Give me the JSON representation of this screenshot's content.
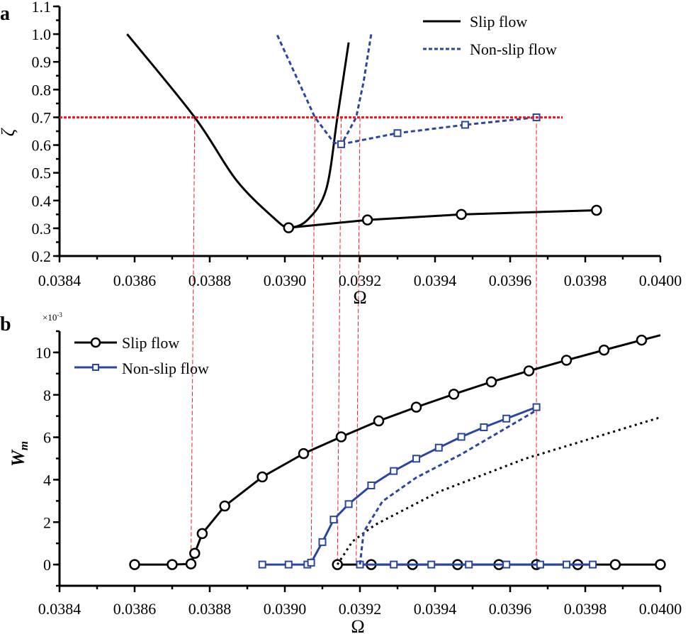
{
  "colors": {
    "slip": "#000000",
    "nonslip": "#2a46a0",
    "guide": "#ee1c24"
  },
  "chart_data": [
    {
      "panel_label": "a",
      "type": "line",
      "xlabel": "Ω",
      "ylabel": "ζ",
      "xlim": [
        0.0384,
        0.04
      ],
      "ylim": [
        0.2,
        1.1
      ],
      "xticks": [
        "0.0384",
        "0.0386",
        "0.0388",
        "0.0390",
        "0.0392",
        "0.0394",
        "0.0396",
        "0.0398",
        "0.0400"
      ],
      "yticks": [
        "0.2",
        "0.3",
        "0.4",
        "0.5",
        "0.6",
        "0.7",
        "0.8",
        "0.9",
        "1.0",
        "1.1"
      ],
      "legend_placement": "top-right",
      "grid": false,
      "series": [
        {
          "name": "Slip flow",
          "style": "solid",
          "color": "#000000",
          "x": [
            0.03858,
            0.03876,
            0.03887,
            0.03897,
            0.03901,
            0.03906,
            0.03911,
            0.03914,
            0.03917
          ],
          "y": [
            1.0,
            0.7,
            0.475,
            0.338,
            0.304,
            0.33,
            0.44,
            0.7,
            0.97
          ]
        },
        {
          "style": "solid-markers",
          "marker": "circle",
          "color": "#000000",
          "x": [
            0.03901,
            0.03922,
            0.03947,
            0.03983
          ],
          "y": [
            0.302,
            0.33,
            0.35,
            0.365
          ]
        },
        {
          "name": "Non-slip flow",
          "style": "dashed",
          "color": "#2a46a0",
          "x": [
            0.03898,
            0.03908,
            0.03913,
            0.03915,
            0.03919,
            0.03921,
            0.03923
          ],
          "y": [
            0.996,
            0.7,
            0.61,
            0.6,
            0.7,
            0.83,
            1.0
          ]
        },
        {
          "style": "dashed-markers",
          "marker": "square",
          "color": "#2a46a0",
          "x": [
            0.03915,
            0.0393,
            0.03948,
            0.03967
          ],
          "y": [
            0.603,
            0.643,
            0.673,
            0.7
          ]
        }
      ],
      "reference_line": {
        "y": 0.7,
        "x_range": [
          0.0384,
          0.03974
        ],
        "color": "#ee1c24"
      },
      "vertical_guides": [
        0.03876,
        0.03908,
        0.03915,
        0.0392,
        0.03967
      ]
    },
    {
      "panel_label": "b",
      "type": "line",
      "xlabel": "Ω",
      "ylabel": "W",
      "ylabel_subscript": "m",
      "y_multiplier": "×10",
      "y_multiplier_exp": "-3",
      "xlim": [
        0.0384,
        0.04
      ],
      "ylim": [
        -1,
        11
      ],
      "xticks": [
        "0.0384",
        "0.0386",
        "0.0388",
        "0.0390",
        "0.0392",
        "0.0394",
        "0.0396",
        "0.0398",
        "0.0400"
      ],
      "yticks": [
        "0",
        "2",
        "4",
        "6",
        "8",
        "10"
      ],
      "legend_placement": "top-left",
      "grid": false,
      "series": [
        {
          "name": "Slip flow",
          "style": "solid-markers",
          "marker": "circle",
          "color": "#000000",
          "x": [
            0.0386,
            0.0387,
            0.03875,
            0.03876,
            0.03878,
            0.03884,
            0.03894,
            0.03905,
            0.03915,
            0.03925,
            0.03935,
            0.03945,
            0.03955,
            0.03965,
            0.03975,
            0.03985,
            0.03995
          ],
          "y": [
            0,
            0,
            0.03,
            0.53,
            1.46,
            2.76,
            4.13,
            5.23,
            6.02,
            6.77,
            7.42,
            8.03,
            8.61,
            9.13,
            9.63,
            10.11,
            10.58
          ],
          "line_end": [
            0.04,
            10.81
          ]
        },
        {
          "style": "solid-markers",
          "marker": "circle",
          "color": "#000000",
          "x": [
            0.03914,
            0.03923,
            0.03934,
            0.03946,
            0.03957,
            0.03967,
            0.03978,
            0.03988,
            0.04
          ],
          "y": [
            0,
            0,
            0,
            0,
            0,
            0,
            0,
            0,
            0
          ]
        },
        {
          "style": "dotted",
          "color": "#000000",
          "x": [
            0.03914,
            0.03918,
            0.03924,
            0.03941,
            0.03964,
            0.04
          ],
          "y": [
            0,
            1.09,
            1.87,
            3.43,
            4.99,
            6.94
          ]
        },
        {
          "name": "Non-slip flow",
          "style": "solid-markers",
          "marker": "square",
          "color": "#2a46a0",
          "x": [
            0.03894,
            0.03901,
            0.03906,
            0.03907,
            0.0391,
            0.03913,
            0.03917,
            0.03923,
            0.03929,
            0.03935,
            0.03941,
            0.03947,
            0.03953,
            0.03959,
            0.03967
          ],
          "y": [
            0,
            0,
            0,
            0.09,
            1.06,
            2.12,
            2.85,
            3.73,
            4.41,
            4.99,
            5.51,
            6.02,
            6.47,
            6.88,
            7.42
          ]
        },
        {
          "style": "solid-markers",
          "marker": "square",
          "color": "#2a46a0",
          "x": [
            0.0392,
            0.03929,
            0.03939,
            0.03949,
            0.03959,
            0.03968,
            0.03975,
            0.03982
          ],
          "y": [
            0,
            0,
            0,
            0,
            0,
            0,
            0,
            0
          ]
        },
        {
          "style": "dashed",
          "color": "#2a46a0",
          "x": [
            0.0392,
            0.03921,
            0.03926,
            0.03935,
            0.03947,
            0.03967
          ],
          "y": [
            0,
            1.54,
            2.98,
            4.1,
            5.2,
            7.27
          ]
        }
      ],
      "vertical_guides": [
        0.03875,
        0.03907,
        0.03914,
        0.03919,
        0.03967
      ]
    }
  ]
}
